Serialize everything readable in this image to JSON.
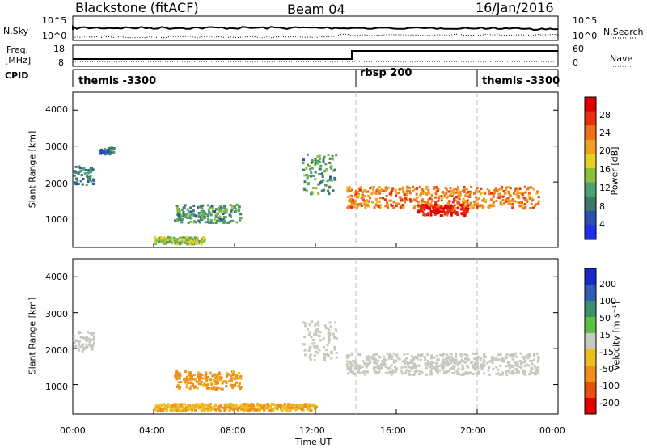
{
  "header": {
    "station": "Blackstone (fitACF)",
    "beam": "Beam 04",
    "date": "16/Jan/2016"
  },
  "left_labels": {
    "nsky": "N.Sky",
    "freq_a": "Freq.",
    "freq_b": "[MHz]",
    "cpid": "CPID"
  },
  "right_labels": {
    "nsearch": "N.Search",
    "nave": "Nave"
  },
  "noise_axis": {
    "left_top": "10^5",
    "left_bottom": "10^0",
    "right_top": "10^5",
    "right_bottom": "10^0"
  },
  "freq_axis": {
    "left_top": "18",
    "left_bottom": "8",
    "right_top": "60",
    "right_bottom": "0"
  },
  "cpid_segments": [
    {
      "label": "themis -3300",
      "start_h": 0,
      "end_h": 14
    },
    {
      "label": "rbsp 200",
      "start_h": 14,
      "end_h": 20
    },
    {
      "label": "themis -3300",
      "start_h": 20,
      "end_h": 24
    }
  ],
  "xaxis": {
    "title": "Time UT",
    "ticks": [
      "00:00",
      "04:00",
      "08:00",
      "12:00",
      "16:00",
      "20:00",
      "00:00"
    ]
  },
  "range_axis": {
    "label": "Slant Range [km]",
    "ticks": [
      "1000",
      "2000",
      "3000",
      "4000"
    ]
  },
  "power_colorbar": {
    "label": "Power [dB]",
    "ticks": [
      "4",
      "8",
      "12",
      "16",
      "20",
      "24",
      "28"
    ],
    "colors": [
      "#1f2ff0",
      "#2a4fb0",
      "#3b7a6a",
      "#4fa070",
      "#8fbf3a",
      "#e8d020",
      "#f0a020",
      "#f07018",
      "#e83010",
      "#e00000"
    ]
  },
  "velocity_colorbar": {
    "label": "Velocity [m s⁻¹]",
    "ticks": [
      "200",
      "100",
      "50",
      "15",
      "-15",
      "-50",
      "-100",
      "-200"
    ],
    "colors": [
      "#1a28c8",
      "#2f5fb0",
      "#3e8f6e",
      "#5cc040",
      "#c8c8c0",
      "#e8c020",
      "#f09018",
      "#e85010",
      "#e00000"
    ]
  },
  "chart_data": [
    {
      "type": "heatmap",
      "title": "Blackstone (fitACF)  Beam 04  16/Jan/2016",
      "quantity": "Power",
      "xlabel": "Time UT",
      "ylabel": "Slant Range [km]",
      "colorbar_label": "Power [dB]",
      "xlim_hours": [
        0,
        24
      ],
      "ylim_km": [
        180,
        4500
      ],
      "features": [
        {
          "t0": 0.0,
          "t1": 1.0,
          "r0": 1950,
          "r1": 2500,
          "db": 8
        },
        {
          "t0": 1.3,
          "t1": 2.0,
          "r0": 2800,
          "r1": 3000,
          "db": 6
        },
        {
          "t0": 5.0,
          "t1": 8.3,
          "r0": 900,
          "r1": 1400,
          "db": 10
        },
        {
          "t0": 4.0,
          "t1": 6.5,
          "r0": 300,
          "r1": 500,
          "db": 14
        },
        {
          "t0": 11.3,
          "t1": 13.0,
          "r0": 1700,
          "r1": 2800,
          "db": 10
        },
        {
          "t0": 13.5,
          "t1": 23.0,
          "r0": 1300,
          "r1": 1900,
          "db": 22
        },
        {
          "t0": 17.0,
          "t1": 19.5,
          "r0": 1100,
          "r1": 1400,
          "db": 28
        }
      ]
    },
    {
      "type": "heatmap",
      "quantity": "Velocity",
      "xlabel": "Time UT",
      "ylabel": "Slant Range [km]",
      "colorbar_label": "Velocity [m s⁻¹]",
      "xlim_hours": [
        0,
        24
      ],
      "ylim_km": [
        180,
        4500
      ],
      "features": [
        {
          "t0": 0.0,
          "t1": 1.0,
          "r0": 1950,
          "r1": 2500,
          "vel": 0
        },
        {
          "t0": 5.0,
          "t1": 8.3,
          "r0": 900,
          "r1": 1400,
          "vel": -40
        },
        {
          "t0": 4.0,
          "t1": 12.0,
          "r0": 300,
          "r1": 500,
          "vel": -30
        },
        {
          "t0": 11.3,
          "t1": 13.0,
          "r0": 1700,
          "r1": 2800,
          "vel": 0
        },
        {
          "t0": 13.5,
          "t1": 23.0,
          "r0": 1300,
          "r1": 1900,
          "vel": 0
        }
      ]
    }
  ]
}
